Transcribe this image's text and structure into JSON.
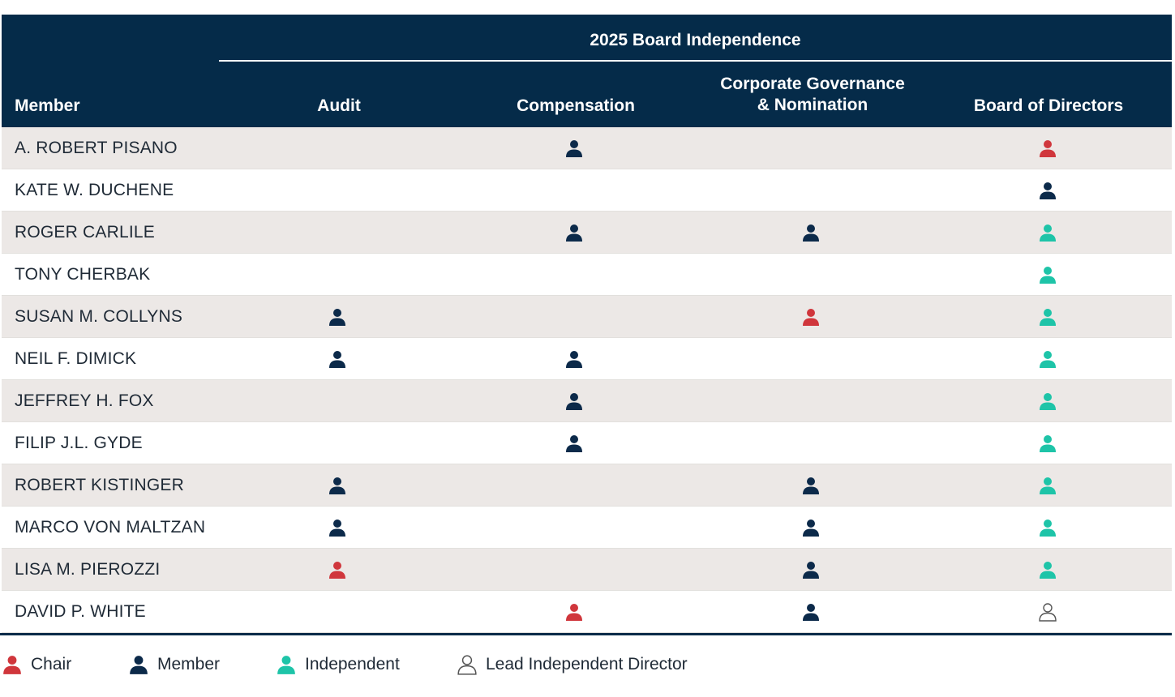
{
  "table": {
    "super_title": "2025 Board Independence",
    "headers": {
      "member": "Member",
      "audit": "Audit",
      "compensation": "Compensation",
      "governance": "Corporate Governance\n& Nomination",
      "board": "Board of Directors"
    },
    "rows": [
      {
        "name": "A. ROBERT PISANO",
        "audit": "",
        "compensation": "member",
        "governance": "",
        "board": "chair"
      },
      {
        "name": "KATE W. DUCHENE",
        "audit": "",
        "compensation": "",
        "governance": "",
        "board": "member"
      },
      {
        "name": "ROGER CARLILE",
        "audit": "",
        "compensation": "member",
        "governance": "member",
        "board": "independent"
      },
      {
        "name": "TONY CHERBAK",
        "audit": "",
        "compensation": "",
        "governance": "",
        "board": "independent"
      },
      {
        "name": "SUSAN M. COLLYNS",
        "audit": "member",
        "compensation": "",
        "governance": "chair",
        "board": "independent"
      },
      {
        "name": "NEIL F. DIMICK",
        "audit": "member",
        "compensation": "member",
        "governance": "",
        "board": "independent"
      },
      {
        "name": "JEFFREY H. FOX",
        "audit": "",
        "compensation": "member",
        "governance": "",
        "board": "independent"
      },
      {
        "name": "FILIP J.L. GYDE",
        "audit": "",
        "compensation": "member",
        "governance": "",
        "board": "independent"
      },
      {
        "name": "ROBERT KISTINGER",
        "audit": "member",
        "compensation": "",
        "governance": "member",
        "board": "independent"
      },
      {
        "name": "MARCO VON MALTZAN",
        "audit": "member",
        "compensation": "",
        "governance": "member",
        "board": "independent"
      },
      {
        "name": "LISA M. PIEROZZI",
        "audit": "chair",
        "compensation": "",
        "governance": "member",
        "board": "independent"
      },
      {
        "name": "DAVID P. WHITE",
        "audit": "",
        "compensation": "chair",
        "governance": "member",
        "board": "lead"
      }
    ]
  },
  "legend": [
    {
      "key": "chair",
      "label": "Chair",
      "icon": "person-chair-icon"
    },
    {
      "key": "member",
      "label": "Member",
      "icon": "person-member-icon"
    },
    {
      "key": "independent",
      "label": "Independent",
      "icon": "person-independent-icon"
    },
    {
      "key": "lead",
      "label": "Lead Independent Director",
      "icon": "person-lead-independent-icon"
    }
  ],
  "colors": {
    "header_bg": "#052b49",
    "chair": "#d0363c",
    "member": "#0c2a4a",
    "independent": "#1ec4a8",
    "lead": "#555555",
    "row_shade": "#ece8e6"
  }
}
